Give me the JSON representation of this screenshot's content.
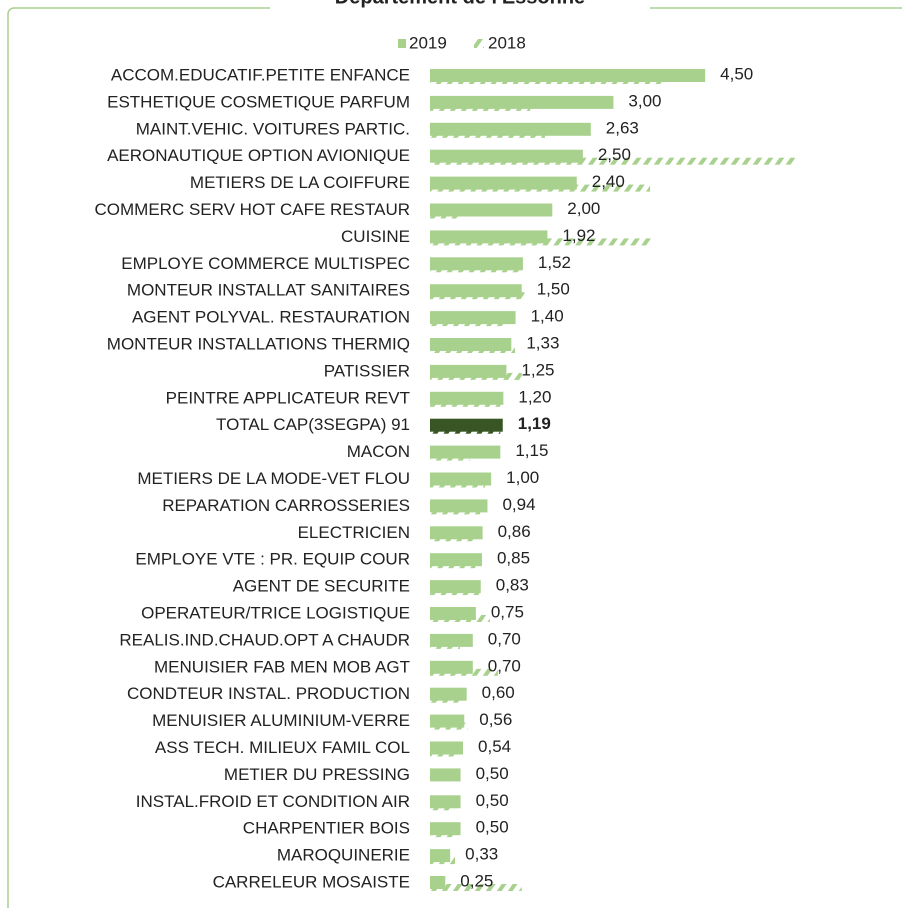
{
  "chart_data": {
    "type": "bar",
    "orientation": "horizontal",
    "title": "Département de l'Essonne",
    "categories": [
      "ACCOM.EDUCATIF.PETITE ENFANCE",
      "ESTHETIQUE COSMETIQUE PARFUM",
      "MAINT.VEHIC. VOITURES PARTIC.",
      "AERONAUTIQUE OPTION AVIONIQUE",
      "METIERS DE LA COIFFURE",
      "COMMERC SERV HOT CAFE RESTAUR",
      "CUISINE",
      "EMPLOYE COMMERCE MULTISPEC",
      "MONTEUR INSTALLAT SANITAIRES",
      "AGENT POLYVAL. RESTAURATION",
      "MONTEUR INSTALLATIONS THERMIQ",
      "PATISSIER",
      "PEINTRE APPLICATEUR REVT",
      "TOTAL CAP(3SEGPA) 91",
      "MACON",
      "METIERS DE LA MODE-VET FLOU",
      "REPARATION CARROSSERIES",
      "ELECTRICIEN",
      "EMPLOYE VTE : PR. EQUIP COUR",
      "AGENT DE SECURITE",
      "OPERATEUR/TRICE LOGISTIQUE",
      "REALIS.IND.CHAUD.OPT A CHAUDR",
      "MENUISIER FAB MEN MOB AGT",
      "CONDTEUR INSTAL. PRODUCTION",
      "MENUISIER ALUMINIUM-VERRE",
      "ASS TECH. MILIEUX FAMIL COL",
      "METIER DU PRESSING",
      "INSTAL.FROID ET CONDITION AIR",
      "CHARPENTIER BOIS",
      "MAROQUINERIE",
      "CARRELEUR MOSAISTE"
    ],
    "series": [
      {
        "name": "2019",
        "color": "#a9d18e",
        "highlight_color": "#375623",
        "values": [
          4.5,
          3.0,
          2.63,
          2.5,
          2.4,
          2.0,
          1.92,
          1.52,
          1.5,
          1.4,
          1.33,
          1.25,
          1.2,
          1.19,
          1.15,
          1.0,
          0.94,
          0.86,
          0.85,
          0.83,
          0.75,
          0.7,
          0.7,
          0.6,
          0.56,
          0.54,
          0.5,
          0.5,
          0.5,
          0.33,
          0.25
        ],
        "value_labels": [
          "4,50",
          "3,00",
          "2,63",
          "2,50",
          "2,40",
          "2,00",
          "1,92",
          "1,52",
          "1,50",
          "1,40",
          "1,33",
          "1,25",
          "1,20",
          "1,19",
          "1,15",
          "1,00",
          "0,94",
          "0,86",
          "0,85",
          "0,83",
          "0,75",
          "0,70",
          "0,70",
          "0,60",
          "0,56",
          "0,54",
          "0,50",
          "0,50",
          "0,50",
          "0,33",
          "0,25"
        ]
      },
      {
        "name": "2018",
        "color": "#a9d18e",
        "pattern": "hatch",
        "values": [
          3.85,
          1.64,
          1.88,
          5.97,
          3.6,
          0.49,
          3.63,
          1.47,
          1.55,
          1.23,
          1.39,
          1.5,
          1.15,
          1.15,
          0.65,
          0.9,
          0.82,
          0.79,
          0.74,
          0.82,
          0.98,
          0.49,
          1.11,
          0.49,
          0.62,
          0.41,
          null,
          0.41,
          0.41,
          0.41,
          1.5
        ]
      }
    ],
    "highlight": "TOTAL CAP(3SEGPA) 91",
    "xlim": [
      0,
      7
    ],
    "legend": "top"
  }
}
